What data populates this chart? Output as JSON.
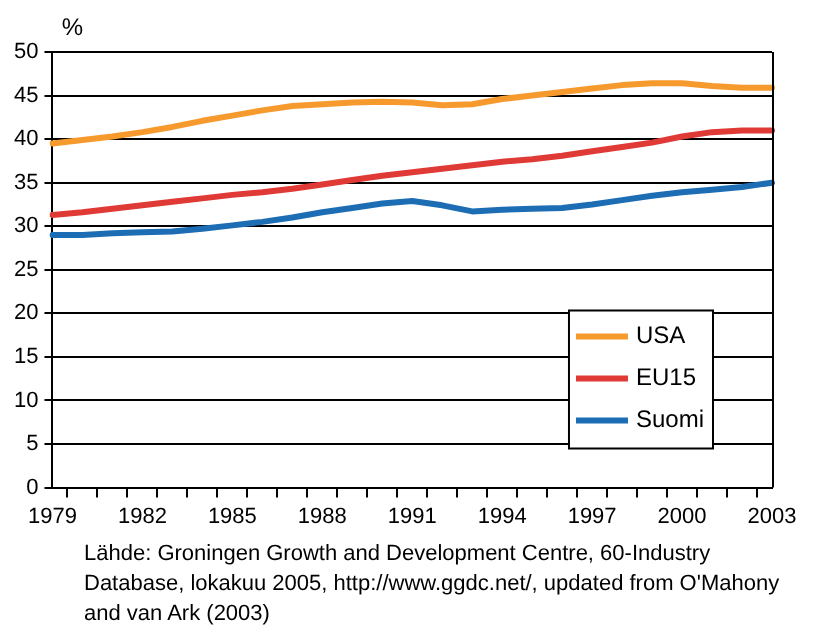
{
  "chart_data": {
    "type": "line",
    "ylabel": "%",
    "categories": [
      "1979",
      null,
      null,
      "1982",
      null,
      null,
      "1985",
      null,
      null,
      "1988",
      null,
      null,
      "1991",
      null,
      null,
      "1994",
      null,
      null,
      "1997",
      null,
      null,
      "2000",
      null,
      null,
      "2003"
    ],
    "series": [
      {
        "name": "USA",
        "color": "#f79a2e",
        "values": [
          39.5,
          39.9,
          40.3,
          40.8,
          41.4,
          42.1,
          42.7,
          43.3,
          43.8,
          44.0,
          44.2,
          44.3,
          44.2,
          43.9,
          44.0,
          44.6,
          45.0,
          45.4,
          45.8,
          46.2,
          46.4,
          46.4,
          46.1,
          45.9,
          45.9
        ]
      },
      {
        "name": "EU15",
        "color": "#e03a36",
        "values": [
          31.3,
          31.6,
          32.0,
          32.4,
          32.8,
          33.2,
          33.6,
          33.9,
          34.3,
          34.8,
          35.3,
          35.8,
          36.2,
          36.6,
          37.0,
          37.4,
          37.7,
          38.1,
          38.6,
          39.1,
          39.6,
          40.3,
          40.8,
          41.0,
          41.0
        ]
      },
      {
        "name": "Suomi",
        "color": "#1d6db5",
        "values": [
          29.0,
          29.0,
          29.2,
          29.3,
          29.4,
          29.7,
          30.1,
          30.5,
          31.0,
          31.6,
          32.1,
          32.6,
          32.9,
          32.4,
          31.7,
          31.9,
          32.0,
          32.1,
          32.5,
          33.0,
          33.5,
          33.9,
          34.2,
          34.5,
          35.0
        ]
      }
    ],
    "ylim": [
      0,
      50
    ],
    "yticks": [
      0,
      5,
      10,
      15,
      20,
      25,
      30,
      35,
      40,
      45,
      50
    ],
    "grid": "y",
    "legend": "bottom right",
    "marker": "none",
    "line_style": "solid",
    "annotations": [
      "Lähde: Groningen Growth and Development Centre, 60-Industry Database, lokakuu 2005, http://www.ggdc.net/, updated from O'Mahony and van Ark (2003)"
    ]
  }
}
